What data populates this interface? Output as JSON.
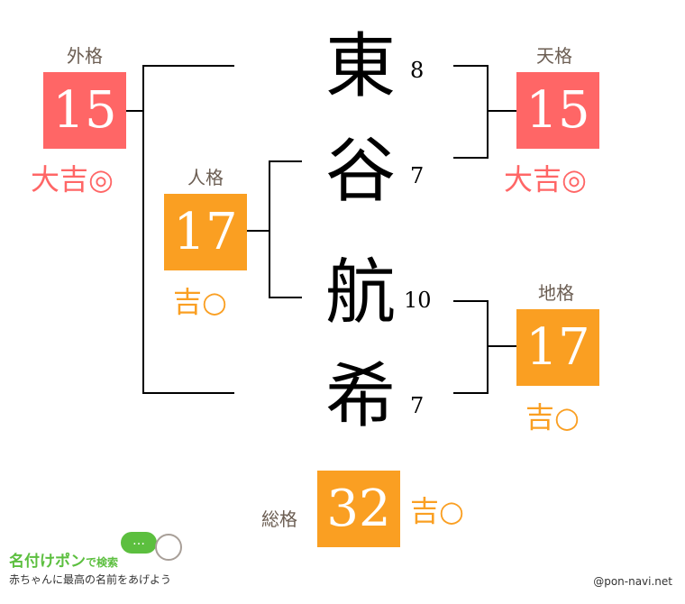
{
  "colors": {
    "great": "#ff6666",
    "good": "#fa9f22",
    "label": "#6b5d52",
    "logo_green": "#5cbf3f"
  },
  "name": {
    "chars": [
      "東",
      "谷",
      "航",
      "希"
    ],
    "strokes": [
      "8",
      "7",
      "10",
      "7"
    ]
  },
  "gaikaku": {
    "label": "外格",
    "value": "15",
    "fortune": "大吉◎"
  },
  "tenkaku": {
    "label": "天格",
    "value": "15",
    "fortune": "大吉◎"
  },
  "jinkaku": {
    "label": "人格",
    "value": "17",
    "fortune": "吉○"
  },
  "chikaku": {
    "label": "地格",
    "value": "17",
    "fortune": "吉○"
  },
  "soukaku": {
    "label": "総格",
    "value": "32",
    "fortune": "吉○"
  },
  "logo": {
    "title": "名付けポン",
    "suffix": "で検索",
    "tagline": "赤ちゃんに最高の名前をあげよう",
    "bubble": "…"
  },
  "credit": "@pon-navi.net"
}
